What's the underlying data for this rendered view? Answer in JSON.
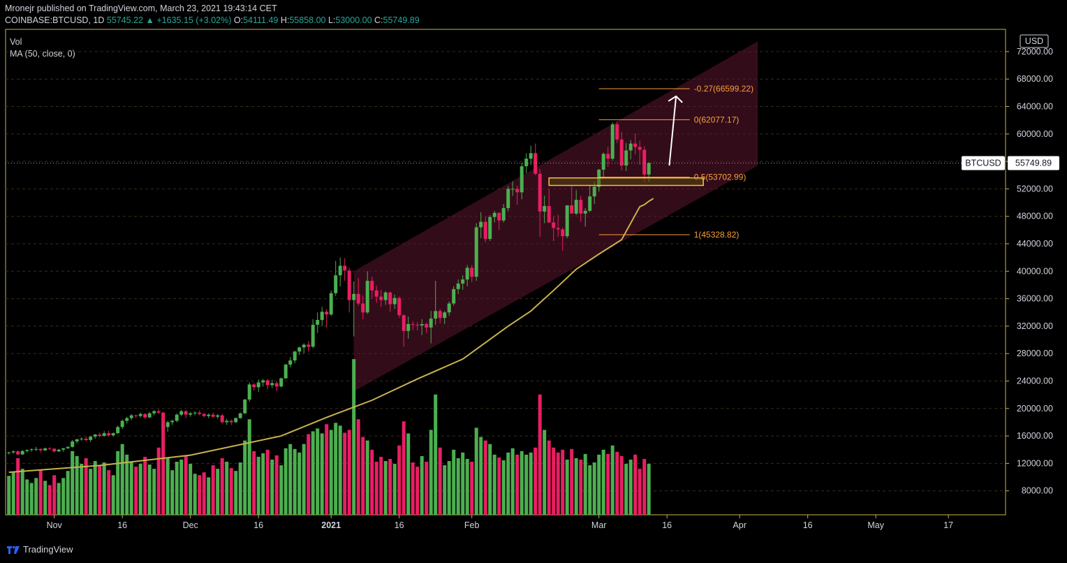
{
  "header": {
    "publisher": "Mronejr published on TradingView.com, March 23, 2021 19:43:14 CET",
    "symbol": "COINBASE:BTCUSD, 1D",
    "last": "55745.22",
    "change_icon": "triangle-up-icon",
    "change": "+1635.15 (+3.02%)",
    "o_label": "O:",
    "o": "54111.49",
    "h_label": "H:",
    "h": "55858.00",
    "l_label": "L:",
    "l": "53000.00",
    "c_label": "C:",
    "c": "55749.89"
  },
  "indicators": {
    "vol": "Vol",
    "ma": "MA (50, close, 0)"
  },
  "footer": {
    "brand": "TradingView",
    "logo_icon": "tradingview-logo-icon"
  },
  "colors": {
    "up": "#4caf50",
    "down": "#e91e63",
    "ma": "#c8b34c",
    "channel": "#5d1630",
    "fib": "#f7a13b",
    "grid": "#3a2e18",
    "axis": "#c8b34c",
    "price_tag": "#ffffff"
  },
  "chart_data": {
    "type": "candlestick",
    "currency": "USD",
    "last_price_label": "BTCUSD",
    "last_price": "55749.89",
    "y_ticks": [
      "8000.00",
      "12000.00",
      "16000.00",
      "20000.00",
      "24000.00",
      "28000.00",
      "32000.00",
      "36000.00",
      "40000.00",
      "44000.00",
      "48000.00",
      "52000.00",
      "56000.00",
      "60000.00",
      "64000.00",
      "68000.00",
      "72000.00"
    ],
    "x_ticks": [
      {
        "date": "2020-11-01",
        "label": "Nov",
        "bold": false
      },
      {
        "date": "2020-11-16",
        "label": "16",
        "bold": false
      },
      {
        "date": "2020-12-01",
        "label": "Dec",
        "bold": false
      },
      {
        "date": "2020-12-16",
        "label": "16",
        "bold": false
      },
      {
        "date": "2021-01-01",
        "label": "2021",
        "bold": true
      },
      {
        "date": "2021-01-16",
        "label": "16",
        "bold": false
      },
      {
        "date": "2021-02-01",
        "label": "Feb",
        "bold": false
      },
      {
        "date": "2021-03-01",
        "label": "Mar",
        "bold": false
      },
      {
        "date": "2021-03-16",
        "label": "16",
        "bold": false
      },
      {
        "date": "2021-04-01",
        "label": "Apr",
        "bold": false
      },
      {
        "date": "2021-04-16",
        "label": "16",
        "bold": false
      },
      {
        "date": "2021-05-01",
        "label": "May",
        "bold": false
      },
      {
        "date": "2021-05-17",
        "label": "17",
        "bold": false
      }
    ],
    "x_start": "2020-10-22",
    "candles": [
      [
        13500,
        13700,
        13300,
        13600,
        5500
      ],
      [
        13600,
        13900,
        13400,
        13750,
        6000
      ],
      [
        13750,
        13900,
        13200,
        13300,
        8000
      ],
      [
        13300,
        13950,
        13250,
        13800,
        6500
      ],
      [
        13800,
        14050,
        13600,
        13950,
        5000
      ],
      [
        13950,
        14200,
        13700,
        14050,
        4500
      ],
      [
        14050,
        14400,
        13800,
        14100,
        5200
      ],
      [
        14100,
        14200,
        13600,
        13900,
        6400
      ],
      [
        13900,
        14300,
        13800,
        14200,
        4800
      ],
      [
        14200,
        14350,
        13900,
        14150,
        4200
      ],
      [
        14150,
        14200,
        13600,
        13750,
        5600
      ],
      [
        13750,
        14100,
        13650,
        14000,
        4500
      ],
      [
        14000,
        14250,
        13700,
        14200,
        5200
      ],
      [
        14200,
        14500,
        14100,
        14400,
        6200
      ],
      [
        14400,
        15400,
        14300,
        15200,
        9000
      ],
      [
        15200,
        15600,
        14900,
        15500,
        8300
      ],
      [
        15500,
        15800,
        15300,
        15600,
        7200
      ],
      [
        15600,
        15900,
        15200,
        15400,
        8000
      ],
      [
        15400,
        16000,
        15100,
        15900,
        6500
      ],
      [
        15900,
        16300,
        15600,
        16200,
        7600
      ],
      [
        16200,
        16500,
        15800,
        16000,
        7000
      ],
      [
        16000,
        16700,
        15900,
        16400,
        7400
      ],
      [
        16400,
        16800,
        15900,
        16100,
        6300
      ],
      [
        16100,
        16500,
        15900,
        16400,
        5600
      ],
      [
        16400,
        17500,
        16300,
        17300,
        9000
      ],
      [
        17300,
        18400,
        17000,
        18200,
        10000
      ],
      [
        18200,
        18800,
        17800,
        18600,
        8500
      ],
      [
        18600,
        19200,
        18300,
        19000,
        7500
      ],
      [
        19000,
        19100,
        18600,
        18900,
        6800
      ],
      [
        18900,
        19400,
        18700,
        19200,
        7200
      ],
      [
        19200,
        19300,
        18500,
        18700,
        8200
      ],
      [
        18700,
        19500,
        18600,
        19300,
        7100
      ],
      [
        19300,
        19800,
        19000,
        19600,
        6500
      ],
      [
        19600,
        19900,
        19200,
        19400,
        9500
      ],
      [
        19400,
        19500,
        16500,
        17300,
        12700
      ],
      [
        17300,
        18200,
        16600,
        18000,
        8000
      ],
      [
        18000,
        18400,
        17600,
        18200,
        6300
      ],
      [
        18200,
        19300,
        18000,
        19100,
        7500
      ],
      [
        19100,
        19800,
        18900,
        19600,
        7800
      ],
      [
        19600,
        19800,
        18600,
        19100,
        8400
      ],
      [
        19100,
        19500,
        18800,
        19300,
        7200
      ],
      [
        19300,
        19600,
        19000,
        19400,
        5800
      ],
      [
        19400,
        19700,
        19000,
        19200,
        5600
      ],
      [
        19200,
        19400,
        18700,
        18900,
        6000
      ],
      [
        18900,
        19300,
        18600,
        19100,
        5300
      ],
      [
        19100,
        19400,
        18700,
        18800,
        7000
      ],
      [
        18800,
        19200,
        18500,
        19000,
        6500
      ],
      [
        19000,
        19200,
        17800,
        18000,
        8000
      ],
      [
        18000,
        18500,
        17600,
        18200,
        7500
      ],
      [
        18200,
        18400,
        17600,
        18000,
        6600
      ],
      [
        18000,
        18700,
        17900,
        18600,
        6200
      ],
      [
        18600,
        19400,
        18500,
        19300,
        7400
      ],
      [
        19300,
        21400,
        19200,
        21300,
        10500
      ],
      [
        21300,
        23800,
        21000,
        23500,
        13500
      ],
      [
        23500,
        23700,
        22600,
        23100,
        9000
      ],
      [
        23100,
        24200,
        22400,
        23800,
        8200
      ],
      [
        23800,
        24300,
        23200,
        24100,
        8700
      ],
      [
        24100,
        24300,
        22800,
        23400,
        9200
      ],
      [
        23400,
        24200,
        23000,
        23700,
        7800
      ],
      [
        23700,
        24000,
        22500,
        23200,
        8400
      ],
      [
        23200,
        24500,
        23100,
        24400,
        7000
      ],
      [
        24400,
        26500,
        24300,
        26400,
        9400
      ],
      [
        26400,
        27500,
        26000,
        27000,
        10000
      ],
      [
        27000,
        28400,
        26600,
        28300,
        9300
      ],
      [
        28300,
        29000,
        27800,
        28900,
        8800
      ],
      [
        28900,
        29500,
        28000,
        29300,
        10000
      ],
      [
        29300,
        29800,
        28300,
        29000,
        11400
      ],
      [
        29000,
        33000,
        28800,
        32200,
        11800
      ],
      [
        32200,
        34000,
        31000,
        32900,
        12200
      ],
      [
        32900,
        34800,
        32000,
        34100,
        11500
      ],
      [
        34100,
        34500,
        31800,
        33700,
        12800
      ],
      [
        33700,
        37200,
        33500,
        36800,
        12000
      ],
      [
        36800,
        41500,
        36400,
        39400,
        13000
      ],
      [
        39400,
        42000,
        37800,
        40800,
        12600
      ],
      [
        40800,
        41900,
        38600,
        40100,
        11600
      ],
      [
        40100,
        40500,
        34000,
        35800,
        12000
      ],
      [
        35800,
        38500,
        30500,
        36700,
        22000
      ],
      [
        36700,
        39000,
        35000,
        35300,
        13500
      ],
      [
        35300,
        36500,
        33000,
        34000,
        11000
      ],
      [
        34000,
        40000,
        33800,
        38600,
        10500
      ],
      [
        38600,
        39200,
        36000,
        37200,
        9200
      ],
      [
        37200,
        37900,
        35400,
        36300,
        7500
      ],
      [
        36300,
        37300,
        34800,
        35800,
        8200
      ],
      [
        35800,
        37100,
        35100,
        36900,
        7600
      ],
      [
        36900,
        37000,
        34100,
        35200,
        7900
      ],
      [
        35200,
        36600,
        34500,
        36100,
        7200
      ],
      [
        36100,
        36300,
        33200,
        33600,
        9800
      ],
      [
        33600,
        33700,
        29000,
        31300,
        13200
      ],
      [
        31300,
        33400,
        30200,
        32300,
        11500
      ],
      [
        32300,
        32700,
        31400,
        32200,
        7400
      ],
      [
        32200,
        32600,
        31400,
        32100,
        6800
      ],
      [
        32100,
        33000,
        30700,
        32300,
        8300
      ],
      [
        32300,
        32500,
        31000,
        31800,
        7500
      ],
      [
        31800,
        34200,
        29500,
        33100,
        12000
      ],
      [
        33100,
        38600,
        32200,
        34200,
        17000
      ],
      [
        34200,
        34500,
        32400,
        33200,
        9500
      ],
      [
        33200,
        34200,
        32300,
        34000,
        7000
      ],
      [
        34000,
        35600,
        33500,
        35300,
        7600
      ],
      [
        35300,
        37800,
        35000,
        37400,
        9200
      ],
      [
        37400,
        38800,
        36700,
        38200,
        8000
      ],
      [
        38200,
        39400,
        37300,
        38800,
        8800
      ],
      [
        38800,
        40900,
        37800,
        40500,
        7900
      ],
      [
        40500,
        40900,
        38400,
        39200,
        7500
      ],
      [
        39200,
        47000,
        38600,
        46400,
        12300
      ],
      [
        46400,
        48600,
        44800,
        47200,
        11000
      ],
      [
        47200,
        48000,
        44200,
        44700,
        10500
      ],
      [
        44700,
        48200,
        44400,
        47900,
        10000
      ],
      [
        47900,
        48800,
        47100,
        48500,
        8500
      ],
      [
        48500,
        48600,
        46000,
        47400,
        8100
      ],
      [
        47400,
        49800,
        47100,
        49200,
        7700
      ],
      [
        49200,
        52400,
        48700,
        52000,
        8800
      ],
      [
        52000,
        53100,
        51000,
        52000,
        9400
      ],
      [
        52000,
        52500,
        49700,
        51500,
        8500
      ],
      [
        51500,
        55800,
        50500,
        55300,
        9000
      ],
      [
        55300,
        57200,
        54300,
        56400,
        8500
      ],
      [
        56400,
        58300,
        55500,
        57200,
        8800
      ],
      [
        57200,
        58600,
        54000,
        54200,
        9500
      ],
      [
        54200,
        54900,
        45000,
        48700,
        17000
      ],
      [
        48700,
        51000,
        47000,
        49500,
        12000
      ],
      [
        49500,
        52000,
        47500,
        47100,
        10500
      ],
      [
        47100,
        48000,
        44400,
        46300,
        9500
      ],
      [
        46300,
        48200,
        45000,
        46100,
        8800
      ],
      [
        46100,
        46400,
        43000,
        45100,
        9200
      ],
      [
        45100,
        49400,
        44800,
        49600,
        7800
      ],
      [
        49600,
        52400,
        48500,
        48400,
        9300
      ],
      [
        48400,
        51800,
        48200,
        50400,
        8000
      ],
      [
        50400,
        51000,
        47200,
        48400,
        7800
      ],
      [
        48400,
        49200,
        46500,
        48800,
        8600
      ],
      [
        48800,
        52500,
        48600,
        50900,
        7000
      ],
      [
        50900,
        53000,
        49800,
        52300,
        7400
      ],
      [
        52300,
        54900,
        51600,
        54800,
        8500
      ],
      [
        54800,
        57300,
        53700,
        57100,
        9200
      ],
      [
        57100,
        58100,
        55200,
        56400,
        8600
      ],
      [
        56400,
        61700,
        56100,
        61400,
        9800
      ],
      [
        61400,
        61800,
        58700,
        59200,
        8900
      ],
      [
        59200,
        60300,
        54700,
        55400,
        8300
      ],
      [
        55400,
        58700,
        54600,
        57600,
        7200
      ],
      [
        57600,
        59100,
        56300,
        58600,
        7800
      ],
      [
        58600,
        60100,
        57000,
        58100,
        8500
      ],
      [
        58100,
        59000,
        55500,
        57700,
        6500
      ],
      [
        57700,
        58200,
        53000,
        54100,
        7900
      ],
      [
        54100,
        55858,
        53000,
        55749.89,
        7200
      ]
    ],
    "ma50": [
      [
        0,
        10700
      ],
      [
        20,
        11700
      ],
      [
        40,
        13200
      ],
      [
        60,
        16000
      ],
      [
        70,
        18700
      ],
      [
        80,
        21200
      ],
      [
        90,
        24300
      ],
      [
        100,
        27200
      ],
      [
        110,
        32000
      ],
      [
        115,
        34200
      ],
      [
        120,
        37200
      ],
      [
        125,
        40300
      ],
      [
        130,
        42500
      ],
      [
        135,
        44600
      ],
      [
        139,
        49400
      ],
      [
        140,
        49700
      ],
      [
        141,
        50200
      ],
      [
        142,
        50600
      ]
    ],
    "ma50_x_offset": 0,
    "channel": {
      "lower_start": [
        76,
        22500
      ],
      "upper_start": [
        76,
        40000
      ],
      "lower_end": [
        165,
        55400
      ],
      "upper_end": [
        165,
        73500
      ]
    },
    "fib_levels": [
      {
        "label": "-0.27(66599.22)",
        "value": 66599.22
      },
      {
        "label": "0(62077.17)",
        "value": 62077.17
      },
      {
        "label": "0.5(53702.99)",
        "value": 53702.99
      },
      {
        "label": "1(45328.82)",
        "value": 45328.82
      }
    ],
    "fib_x_range": [
      130,
      150
    ],
    "zone": {
      "from": 52500,
      "to": 53600,
      "x_range": [
        119,
        153
      ]
    },
    "arrow": {
      "from": [
        145.5,
        55400
      ],
      "to": [
        147,
        65500
      ]
    }
  }
}
